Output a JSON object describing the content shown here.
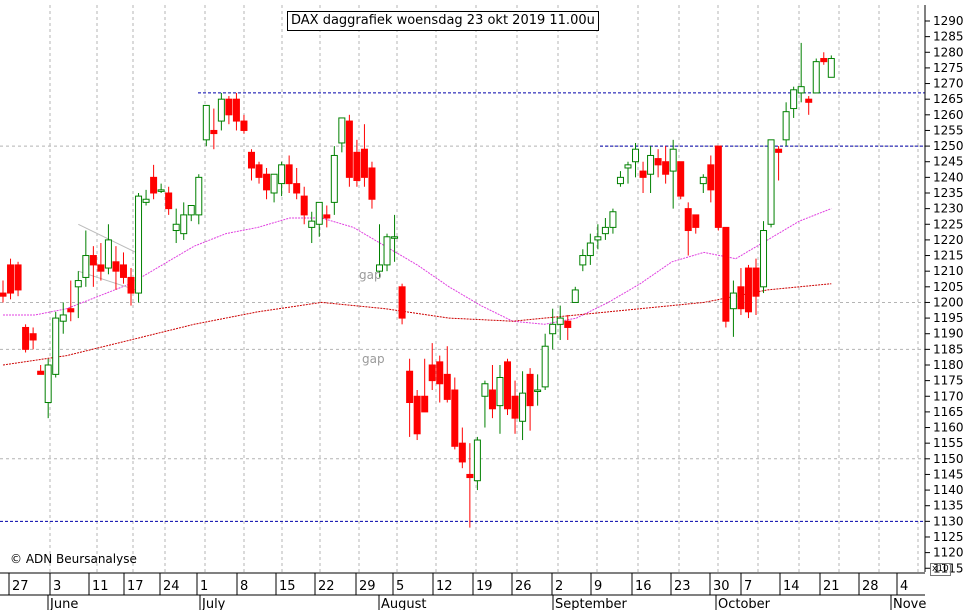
{
  "title": "DAX daggrafiek woensdag 23 okt 2019 11.00u",
  "copyright": "© ADN Beursanalyse",
  "gap_labels": [
    "gap",
    "gap"
  ],
  "yaxis_scale_note": "x10",
  "colors": {
    "up": "#008000",
    "down": "#ff0000",
    "ma_short": "#e040e0",
    "ma_long": "#cc0000",
    "level_line": "#0000aa",
    "grid": "#b4b4b4"
  },
  "chart_data": {
    "type": "candlestick",
    "ylim": [
      1115,
      1295
    ],
    "y_ticks": [
      1115,
      1120,
      1125,
      1130,
      1135,
      1140,
      1145,
      1150,
      1155,
      1160,
      1165,
      1170,
      1175,
      1180,
      1185,
      1190,
      1195,
      1200,
      1205,
      1210,
      1215,
      1220,
      1225,
      1230,
      1235,
      1240,
      1245,
      1250,
      1255,
      1260,
      1265,
      1270,
      1275,
      1280,
      1285,
      1290
    ],
    "x_day_labels": [
      "27",
      "3",
      "11",
      "17",
      "24",
      "1",
      "8",
      "15",
      "22",
      "29",
      "5",
      "12",
      "19",
      "26",
      "2",
      "9",
      "16",
      "23",
      "30",
      "7",
      "14",
      "21",
      "28",
      "4"
    ],
    "x_month_labels": [
      "June",
      "July",
      "August",
      "September",
      "October",
      "Nove"
    ],
    "horizontal_levels": [
      1267,
      1250,
      1130
    ],
    "candles": [
      {
        "o": 1203,
        "h": 1207,
        "l": 1200,
        "c": 1202
      },
      {
        "o": 1212,
        "h": 1214,
        "l": 1201,
        "c": 1203
      },
      {
        "o": 1212,
        "h": 1213,
        "l": 1202,
        "c": 1204
      },
      {
        "o": 1192,
        "h": 1193,
        "l": 1184,
        "c": 1185
      },
      {
        "o": 1190,
        "h": 1192,
        "l": 1185,
        "c": 1188
      },
      {
        "o": 1178,
        "h": 1180,
        "l": 1177,
        "c": 1177
      },
      {
        "o": 1168,
        "h": 1182,
        "l": 1163,
        "c": 1180
      },
      {
        "o": 1177,
        "h": 1197,
        "l": 1176,
        "c": 1195
      },
      {
        "o": 1194,
        "h": 1200,
        "l": 1190,
        "c": 1196
      },
      {
        "o": 1198,
        "h": 1207,
        "l": 1194,
        "c": 1197
      },
      {
        "o": 1205,
        "h": 1210,
        "l": 1195,
        "c": 1207
      },
      {
        "o": 1208,
        "h": 1223,
        "l": 1205,
        "c": 1215
      },
      {
        "o": 1215,
        "h": 1218,
        "l": 1205,
        "c": 1212
      },
      {
        "o": 1212,
        "h": 1219,
        "l": 1207,
        "c": 1210
      },
      {
        "o": 1211,
        "h": 1225,
        "l": 1209,
        "c": 1220
      },
      {
        "o": 1213,
        "h": 1218,
        "l": 1204,
        "c": 1210
      },
      {
        "o": 1212,
        "h": 1216,
        "l": 1206,
        "c": 1208
      },
      {
        "o": 1208,
        "h": 1211,
        "l": 1199,
        "c": 1203
      },
      {
        "o": 1203,
        "h": 1235,
        "l": 1200,
        "c": 1234
      },
      {
        "o": 1232,
        "h": 1236,
        "l": 1231,
        "c": 1233
      },
      {
        "o": 1240,
        "h": 1244,
        "l": 1233,
        "c": 1235
      },
      {
        "o": 1236,
        "h": 1238,
        "l": 1235,
        "c": 1236
      },
      {
        "o": 1235,
        "h": 1237,
        "l": 1228,
        "c": 1230
      },
      {
        "o": 1223,
        "h": 1230,
        "l": 1219,
        "c": 1225
      },
      {
        "o": 1222,
        "h": 1232,
        "l": 1220,
        "c": 1228
      },
      {
        "o": 1228,
        "h": 1230,
        "l": 1226,
        "c": 1231
      },
      {
        "o": 1228,
        "h": 1241,
        "l": 1225,
        "c": 1240
      },
      {
        "o": 1252,
        "h": 1262,
        "l": 1250,
        "c": 1263
      },
      {
        "o": 1255,
        "h": 1262,
        "l": 1249,
        "c": 1254
      },
      {
        "o": 1258,
        "h": 1267,
        "l": 1255,
        "c": 1265
      },
      {
        "o": 1265,
        "h": 1266,
        "l": 1257,
        "c": 1260
      },
      {
        "o": 1265,
        "h": 1267,
        "l": 1255,
        "c": 1258
      },
      {
        "o": 1258,
        "h": 1260,
        "l": 1254,
        "c": 1255
      },
      {
        "o": 1248,
        "h": 1249,
        "l": 1239,
        "c": 1243
      },
      {
        "o": 1244,
        "h": 1245,
        "l": 1238,
        "c": 1240
      },
      {
        "o": 1241,
        "h": 1243,
        "l": 1233,
        "c": 1236
      },
      {
        "o": 1235,
        "h": 1240,
        "l": 1232,
        "c": 1241
      },
      {
        "o": 1238,
        "h": 1245,
        "l": 1234,
        "c": 1244
      },
      {
        "o": 1244,
        "h": 1247,
        "l": 1235,
        "c": 1238
      },
      {
        "o": 1238,
        "h": 1243,
        "l": 1233,
        "c": 1235
      },
      {
        "o": 1234,
        "h": 1237,
        "l": 1225,
        "c": 1228
      },
      {
        "o": 1224,
        "h": 1229,
        "l": 1219,
        "c": 1226
      },
      {
        "o": 1225,
        "h": 1232,
        "l": 1221,
        "c": 1232
      },
      {
        "o": 1228,
        "h": 1231,
        "l": 1224,
        "c": 1227
      },
      {
        "o": 1232,
        "h": 1250,
        "l": 1228,
        "c": 1247
      },
      {
        "o": 1251,
        "h": 1258,
        "l": 1248,
        "c": 1259
      },
      {
        "o": 1258,
        "h": 1260,
        "l": 1237,
        "c": 1240
      },
      {
        "o": 1248,
        "h": 1252,
        "l": 1237,
        "c": 1239
      },
      {
        "o": 1249,
        "h": 1257,
        "l": 1237,
        "c": 1240
      },
      {
        "o": 1243,
        "h": 1245,
        "l": 1230,
        "c": 1233
      },
      {
        "o": 1210,
        "h": 1225,
        "l": 1208,
        "c": 1212
      },
      {
        "o": 1212,
        "h": 1222,
        "l": 1210,
        "c": 1221
      },
      {
        "o": 1221,
        "h": 1228,
        "l": 1213,
        "c": 1221
      },
      {
        "o": 1205,
        "h": 1206,
        "l": 1193,
        "c": 1195
      },
      {
        "o": 1178,
        "h": 1182,
        "l": 1157,
        "c": 1168
      },
      {
        "o": 1170,
        "h": 1172,
        "l": 1156,
        "c": 1158
      },
      {
        "o": 1170,
        "h": 1182,
        "l": 1165,
        "c": 1165
      },
      {
        "o": 1180,
        "h": 1187,
        "l": 1172,
        "c": 1175
      },
      {
        "o": 1181,
        "h": 1183,
        "l": 1168,
        "c": 1174
      },
      {
        "o": 1177,
        "h": 1186,
        "l": 1168,
        "c": 1169
      },
      {
        "o": 1172,
        "h": 1176,
        "l": 1153,
        "c": 1154
      },
      {
        "o": 1155,
        "h": 1160,
        "l": 1147,
        "c": 1149
      },
      {
        "o": 1145,
        "h": 1155,
        "l": 1128,
        "c": 1144
      },
      {
        "o": 1143,
        "h": 1157,
        "l": 1140,
        "c": 1156
      },
      {
        "o": 1170,
        "h": 1175,
        "l": 1160,
        "c": 1174
      },
      {
        "o": 1172,
        "h": 1180,
        "l": 1163,
        "c": 1166
      },
      {
        "o": 1167,
        "h": 1180,
        "l": 1158,
        "c": 1176
      },
      {
        "o": 1181,
        "h": 1182,
        "l": 1164,
        "c": 1166
      },
      {
        "o": 1170,
        "h": 1175,
        "l": 1158,
        "c": 1163
      },
      {
        "o": 1162,
        "h": 1178,
        "l": 1156,
        "c": 1171
      },
      {
        "o": 1177,
        "h": 1179,
        "l": 1159,
        "c": 1167
      },
      {
        "o": 1172,
        "h": 1177,
        "l": 1167,
        "c": 1172
      },
      {
        "o": 1173,
        "h": 1190,
        "l": 1172,
        "c": 1186
      },
      {
        "o": 1190,
        "h": 1198,
        "l": 1185,
        "c": 1193
      },
      {
        "o": 1193,
        "h": 1199,
        "l": 1188,
        "c": 1195
      },
      {
        "o": 1194,
        "h": 1196,
        "l": 1188,
        "c": 1192
      },
      {
        "o": 1200,
        "h": 1205,
        "l": 1200,
        "c": 1204
      },
      {
        "o": 1212,
        "h": 1217,
        "l": 1210,
        "c": 1215
      },
      {
        "o": 1215,
        "h": 1222,
        "l": 1212,
        "c": 1219
      },
      {
        "o": 1220,
        "h": 1225,
        "l": 1217,
        "c": 1221
      },
      {
        "o": 1222,
        "h": 1227,
        "l": 1220,
        "c": 1224
      },
      {
        "o": 1224,
        "h": 1230,
        "l": 1222,
        "c": 1229
      },
      {
        "o": 1238,
        "h": 1242,
        "l": 1237,
        "c": 1240
      },
      {
        "o": 1243,
        "h": 1245,
        "l": 1238,
        "c": 1244
      },
      {
        "o": 1245,
        "h": 1251,
        "l": 1240,
        "c": 1249
      },
      {
        "o": 1242,
        "h": 1245,
        "l": 1235,
        "c": 1240
      },
      {
        "o": 1241,
        "h": 1250,
        "l": 1235,
        "c": 1247
      },
      {
        "o": 1246,
        "h": 1249,
        "l": 1240,
        "c": 1244
      },
      {
        "o": 1245,
        "h": 1250,
        "l": 1238,
        "c": 1241
      },
      {
        "o": 1242,
        "h": 1252,
        "l": 1230,
        "c": 1249
      },
      {
        "o": 1245,
        "h": 1245,
        "l": 1233,
        "c": 1234
      },
      {
        "o": 1230,
        "h": 1232,
        "l": 1215,
        "c": 1223
      },
      {
        "o": 1228,
        "h": 1228,
        "l": 1222,
        "c": 1224
      },
      {
        "o": 1238,
        "h": 1241,
        "l": 1235,
        "c": 1240
      },
      {
        "o": 1244,
        "h": 1247,
        "l": 1232,
        "c": 1236
      },
      {
        "o": 1250,
        "h": 1250,
        "l": 1223,
        "c": 1224
      },
      {
        "o": 1224,
        "h": 1224,
        "l": 1192,
        "c": 1194
      },
      {
        "o": 1198,
        "h": 1207,
        "l": 1189,
        "c": 1203
      },
      {
        "o": 1205,
        "h": 1211,
        "l": 1196,
        "c": 1198
      },
      {
        "o": 1211,
        "h": 1212,
        "l": 1195,
        "c": 1197
      },
      {
        "o": 1211,
        "h": 1214,
        "l": 1196,
        "c": 1202
      },
      {
        "o": 1205,
        "h": 1226,
        "l": 1203,
        "c": 1223
      },
      {
        "o": 1225,
        "h": 1252,
        "l": 1224,
        "c": 1252
      },
      {
        "o": 1249,
        "h": 1250,
        "l": 1239,
        "c": 1248
      },
      {
        "o": 1252,
        "h": 1264,
        "l": 1250,
        "c": 1261
      },
      {
        "o": 1262,
        "h": 1269,
        "l": 1259,
        "c": 1268
      },
      {
        "o": 1267,
        "h": 1283,
        "l": 1264,
        "c": 1269
      },
      {
        "o": 1265,
        "h": 1266,
        "l": 1260,
        "c": 1264
      },
      {
        "o": 1267,
        "h": 1278,
        "l": 1267,
        "c": 1277
      },
      {
        "o": 1278,
        "h": 1280,
        "l": 1276,
        "c": 1277
      },
      {
        "o": 1272,
        "h": 1279,
        "l": 1272,
        "c": 1278
      }
    ],
    "ma_short": [
      [
        0,
        1196
      ],
      [
        0.1,
        1196
      ],
      [
        0.2,
        1198
      ],
      [
        0.3,
        1202
      ],
      [
        0.4,
        1206
      ],
      [
        0.5,
        1212
      ],
      [
        0.6,
        1218
      ],
      [
        0.7,
        1222
      ],
      [
        0.8,
        1224
      ],
      [
        0.9,
        1227
      ],
      [
        1.0,
        1227
      ],
      [
        1.1,
        1224
      ],
      [
        1.2,
        1218
      ],
      [
        1.3,
        1212
      ],
      [
        1.4,
        1205
      ],
      [
        1.5,
        1199
      ],
      [
        1.6,
        1194
      ],
      [
        1.7,
        1193
      ],
      [
        1.8,
        1195
      ],
      [
        1.9,
        1200
      ],
      [
        2.0,
        1206
      ],
      [
        2.1,
        1213
      ],
      [
        2.2,
        1216
      ],
      [
        2.3,
        1214
      ],
      [
        2.4,
        1220
      ],
      [
        2.5,
        1226
      ],
      [
        2.6,
        1230
      ]
    ],
    "ma_long": [
      [
        0,
        1180
      ],
      [
        0.2,
        1183
      ],
      [
        0.4,
        1188
      ],
      [
        0.6,
        1193
      ],
      [
        0.8,
        1197
      ],
      [
        1.0,
        1200
      ],
      [
        1.2,
        1198
      ],
      [
        1.4,
        1195
      ],
      [
        1.6,
        1194
      ],
      [
        1.8,
        1196
      ],
      [
        2.0,
        1198
      ],
      [
        2.2,
        1200
      ],
      [
        2.4,
        1204
      ],
      [
        2.6,
        1206
      ]
    ],
    "channel_lines": [
      {
        "from": [
          10,
          1225
        ],
        "to": [
          15,
          1216
        ]
      },
      {
        "from": [
          10,
          1210
        ],
        "to": [
          15,
          1204
        ]
      }
    ]
  }
}
